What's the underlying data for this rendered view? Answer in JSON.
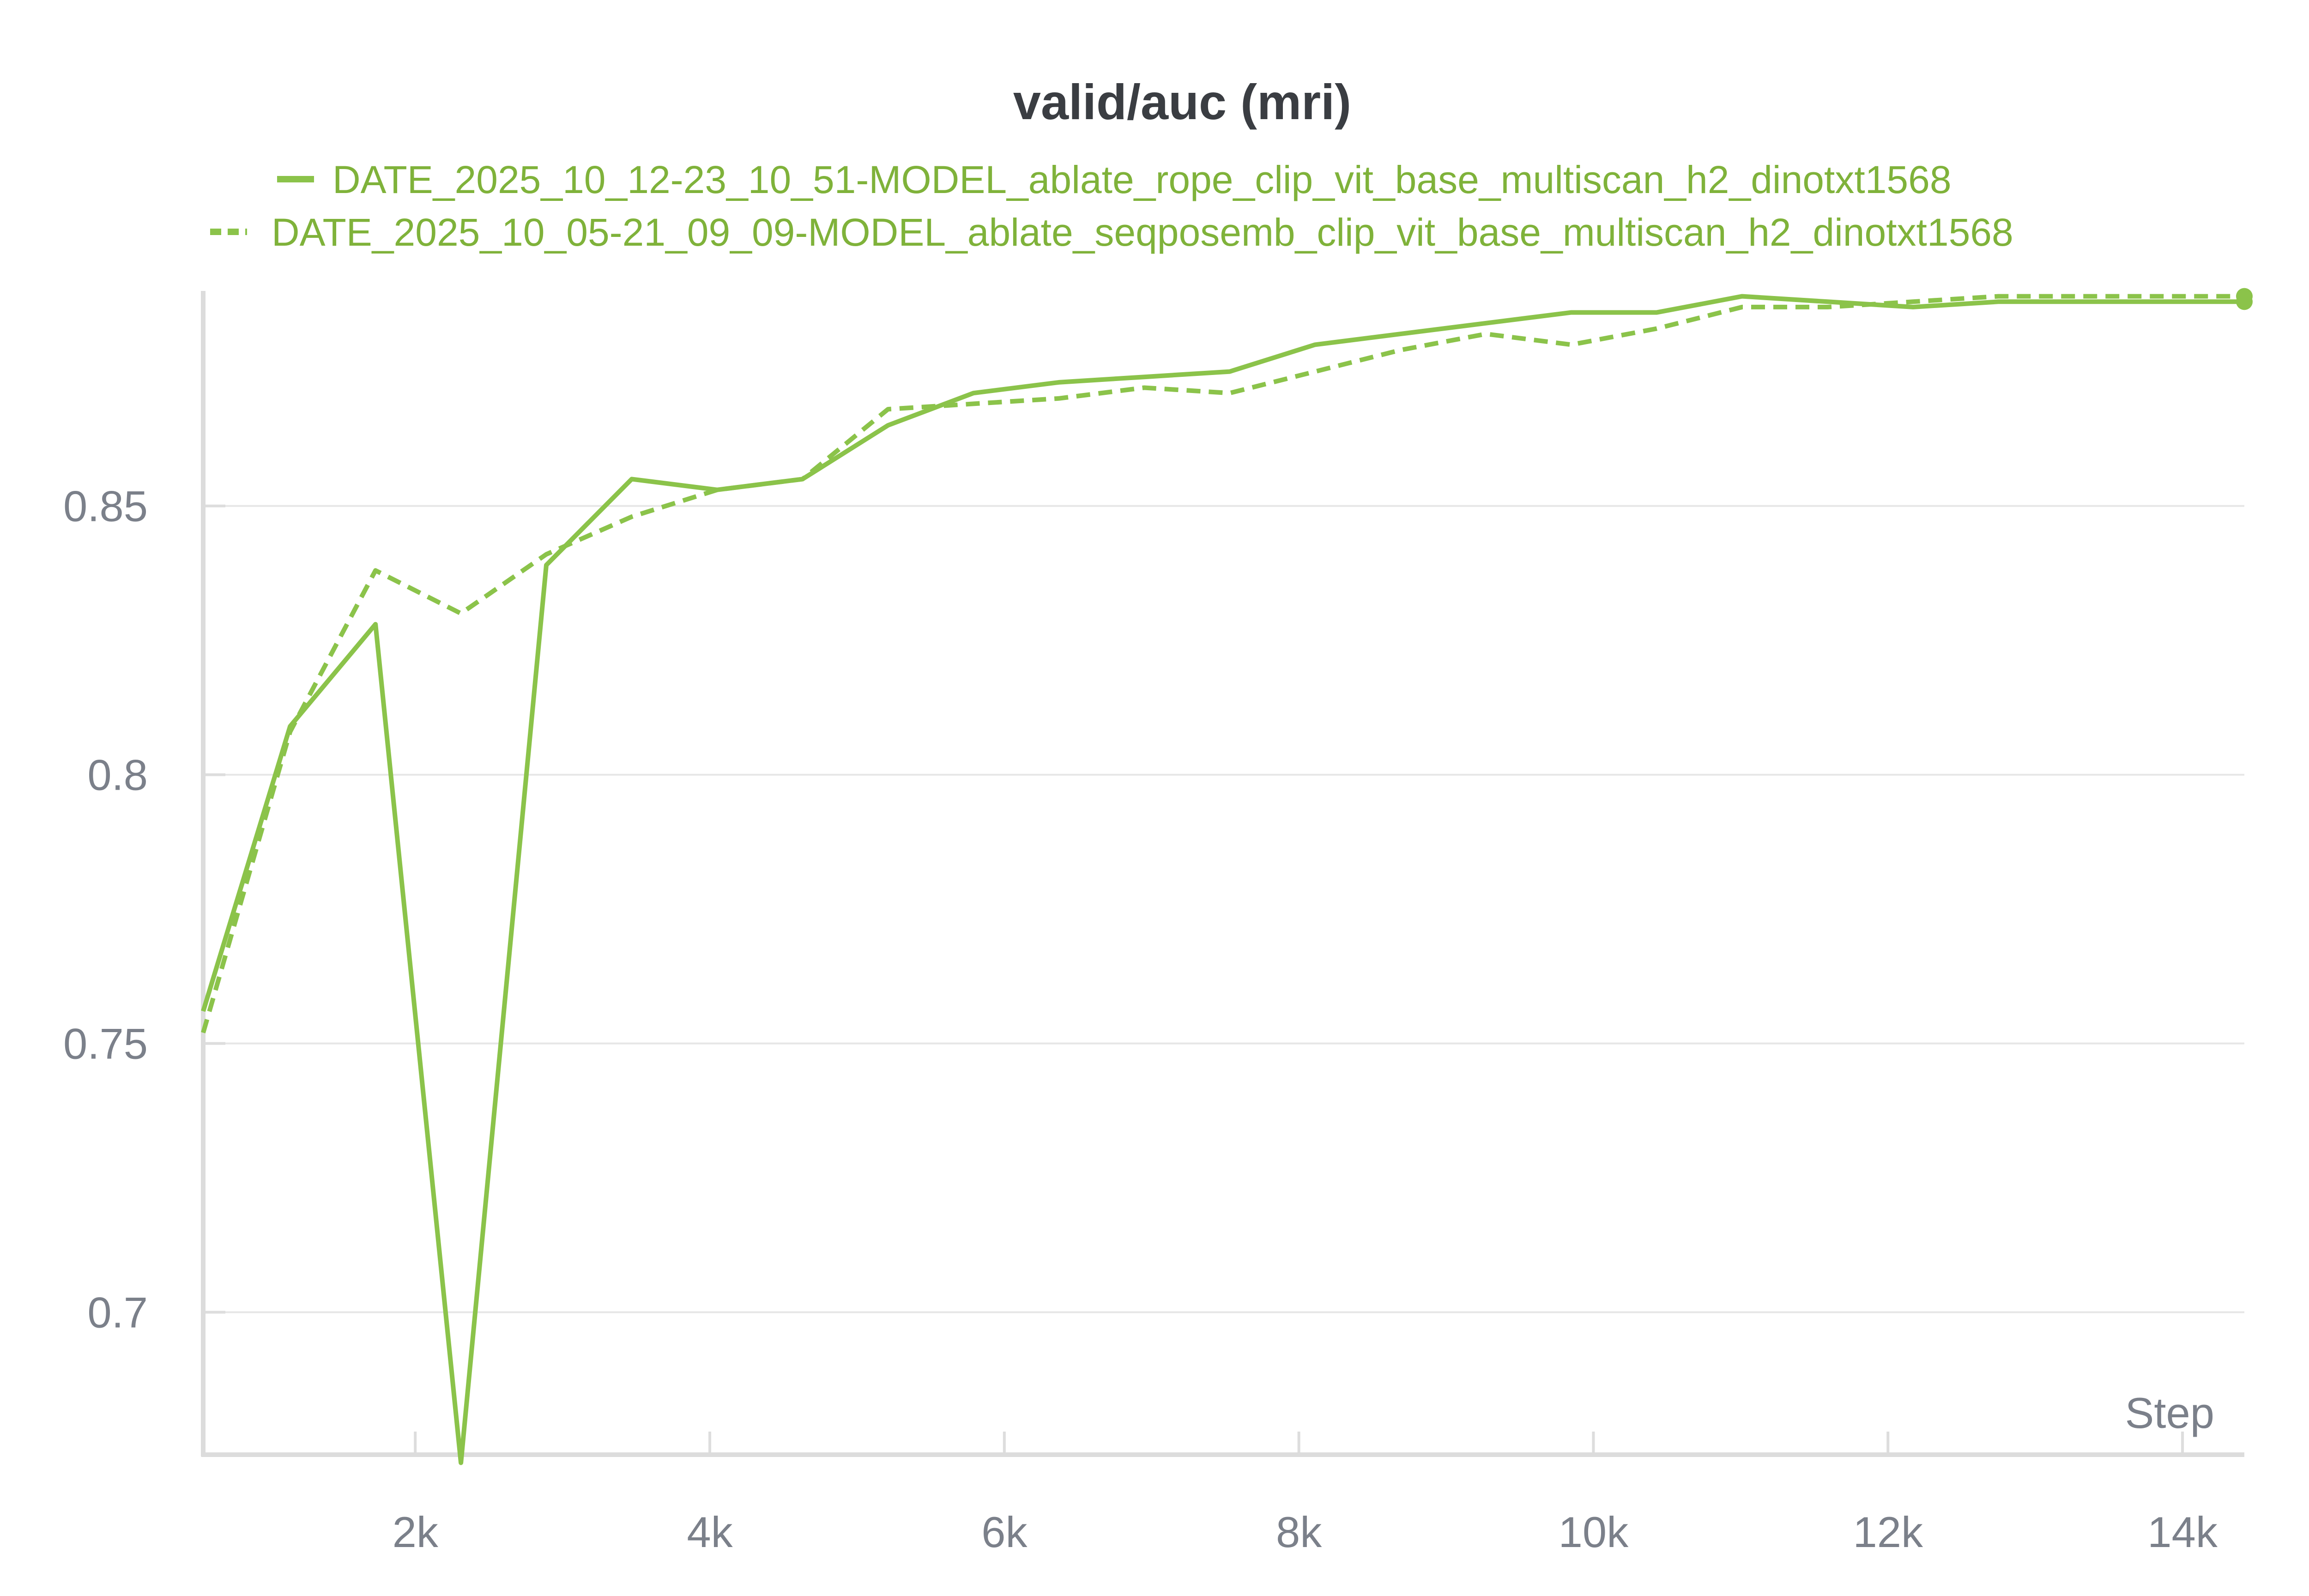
{
  "chart_data": {
    "type": "line",
    "title": "valid/auc (mri)",
    "xlabel": "Step",
    "ylabel": "",
    "xlim": [
      560,
      14420
    ],
    "ylim": [
      0.6735,
      0.89
    ],
    "x_ticks": [
      {
        "value": 2000,
        "label": "2k"
      },
      {
        "value": 4000,
        "label": "4k"
      },
      {
        "value": 6000,
        "label": "6k"
      },
      {
        "value": 8000,
        "label": "8k"
      },
      {
        "value": 10000,
        "label": "10k"
      },
      {
        "value": 12000,
        "label": "12k"
      },
      {
        "value": 14000,
        "label": "14k"
      }
    ],
    "y_ticks": [
      {
        "value": 0.7,
        "label": "0.7"
      },
      {
        "value": 0.75,
        "label": "0.75"
      },
      {
        "value": 0.8,
        "label": "0.8"
      },
      {
        "value": 0.85,
        "label": "0.85"
      }
    ],
    "grid": true,
    "legend_position": "top",
    "series": [
      {
        "name": "DATE_2025_10_12-23_10_51-MODEL_ablate_rope_clip_vit_base_multiscan_h2_dinotxt1568",
        "style": "solid",
        "color": "#8bc34a",
        "x": [
          560,
          1150,
          1730,
          2310,
          2890,
          3470,
          4050,
          4630,
          5210,
          5790,
          6370,
          6950,
          7530,
          8110,
          8690,
          9270,
          9850,
          10430,
          11010,
          11590,
          12170,
          12750,
          13330,
          13910,
          14420
        ],
        "y": [
          0.756,
          0.809,
          0.828,
          0.672,
          0.839,
          0.855,
          0.853,
          0.855,
          0.865,
          0.871,
          0.873,
          0.874,
          0.875,
          0.88,
          0.882,
          0.884,
          0.886,
          0.886,
          0.889,
          0.888,
          0.887,
          0.888,
          0.888,
          0.888,
          0.888
        ]
      },
      {
        "name": "DATE_2025_10_05-21_09_09-MODEL_ablate_seqposemb_clip_vit_base_multiscan_h2_dinotxt1568",
        "style": "dashed",
        "color": "#8bc34a",
        "x": [
          560,
          1150,
          1730,
          2310,
          2890,
          3470,
          4050,
          4630,
          5210,
          5790,
          6370,
          6950,
          7530,
          8110,
          8690,
          9270,
          9850,
          10430,
          11010,
          11590,
          12170,
          12750,
          13330,
          13910,
          14420
        ],
        "y": [
          0.752,
          0.808,
          0.838,
          0.83,
          0.841,
          0.848,
          0.853,
          0.855,
          0.868,
          0.869,
          0.87,
          0.872,
          0.871,
          0.875,
          0.879,
          0.882,
          0.88,
          0.883,
          0.887,
          0.887,
          0.888,
          0.889,
          0.889,
          0.889,
          0.889
        ]
      }
    ]
  }
}
